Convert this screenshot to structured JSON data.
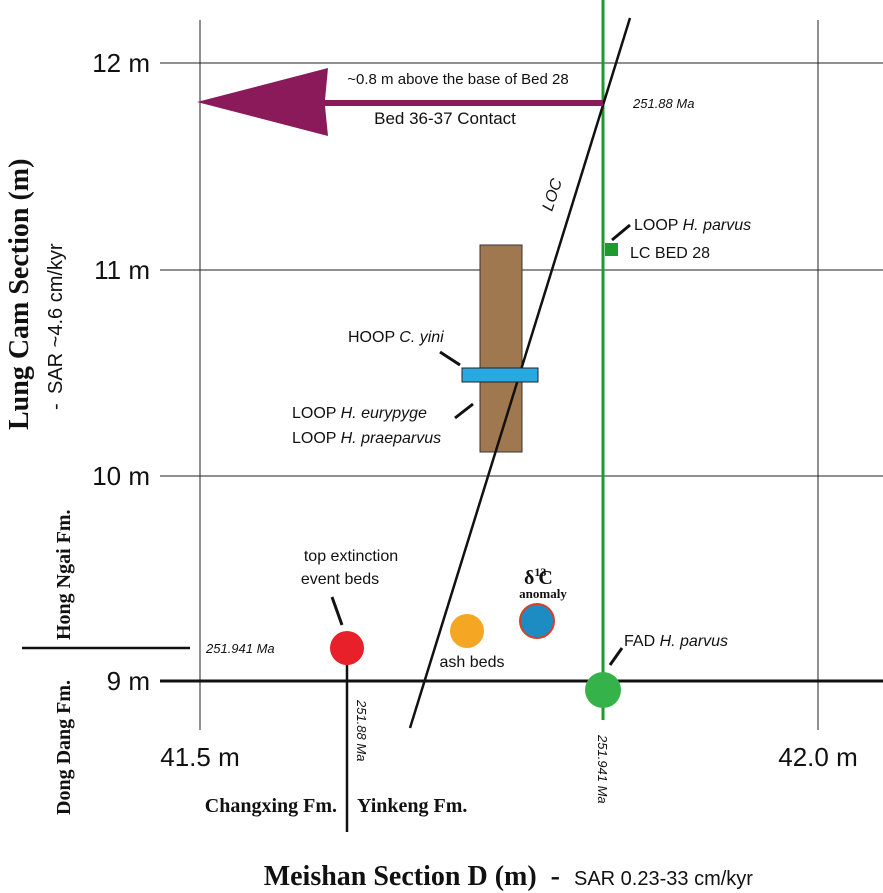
{
  "axes": {
    "x_title": "Meishan Section D (m)",
    "x_sar": "SAR 0.23-33 cm/kyr",
    "y_title": "Lung Cam Section (m)",
    "y_sar": "SAR ~4.6 cm/kyr",
    "x_ticks": [
      "41.5 m",
      "42.0 m"
    ],
    "y_ticks": [
      "12 m",
      "11 m",
      "10 m",
      "9 m"
    ]
  },
  "formations": {
    "lung_cam_upper": "Hong Ngai Fm.",
    "lung_cam_lower": "Dong Dang Fm.",
    "meishan_left": "Changxing Fm.",
    "meishan_right": "Yinkeng Fm."
  },
  "annotations": {
    "arrow_top": "~0.8 m above the base of Bed 28",
    "arrow_bottom": "Bed 36-37 Contact",
    "age_top": "251.88 Ma",
    "loc": "LOC",
    "loop_parvus": [
      "LOOP",
      "H. parvus"
    ],
    "lc_bed": "LC BED 28",
    "hoop": [
      "HOOP",
      "C. yini"
    ],
    "loop_eurypyge": [
      "LOOP",
      "H. eurypyge"
    ],
    "loop_praeparvus": [
      "LOOP",
      "H. praeparvus"
    ],
    "extinction": [
      "top extinction",
      "event beds"
    ],
    "delta": [
      "δ",
      "13",
      "C"
    ],
    "anomaly": "anomaly",
    "ash": "ash beds",
    "fad": [
      "FAD",
      "H. parvus"
    ],
    "age_left": "251.941 Ma",
    "age_vertical_left": "251.88 Ma",
    "age_vertical_right": "251.941 Ma"
  }
}
